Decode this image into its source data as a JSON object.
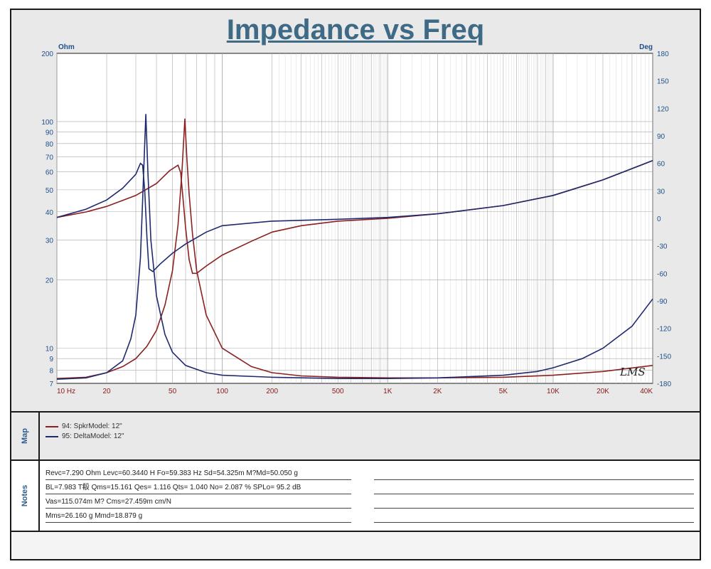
{
  "title": "Impedance vs Freq",
  "chart_data": {
    "type": "line",
    "title": "Impedance vs Freq",
    "x_scale": "log",
    "y_scale": "log",
    "xlim": [
      10,
      40000
    ],
    "ylim_left": [
      7,
      200
    ],
    "ylim_right": [
      -180,
      180
    ],
    "ylabel_left": "Ohm",
    "ylabel_right": "Deg",
    "x_tick_labels": [
      {
        "v": 10,
        "t": "10  Hz"
      },
      {
        "v": 20,
        "t": "20"
      },
      {
        "v": 50,
        "t": "50"
      },
      {
        "v": 100,
        "t": "100"
      },
      {
        "v": 200,
        "t": "200"
      },
      {
        "v": 500,
        "t": "500"
      },
      {
        "v": 1000,
        "t": "1K"
      },
      {
        "v": 2000,
        "t": "2K"
      },
      {
        "v": 5000,
        "t": "5K"
      },
      {
        "v": 10000,
        "t": "10K"
      },
      {
        "v": 20000,
        "t": "20K"
      },
      {
        "v": 40000,
        "t": "40K"
      }
    ],
    "y_left_ticks": [
      7,
      8,
      9,
      10,
      20,
      30,
      40,
      50,
      60,
      70,
      80,
      90,
      100,
      200
    ],
    "y_right_ticks": [
      -180,
      -150,
      -120,
      -90,
      -60,
      -30,
      0,
      30,
      60,
      90,
      120,
      150,
      180
    ],
    "grid": true,
    "legend_position": "bottom panel",
    "series": [
      {
        "name": "94: SpkrModel: 12\"",
        "color": "#8b2020",
        "impedance": [
          [
            10,
            7.35
          ],
          [
            15,
            7.45
          ],
          [
            20,
            7.8
          ],
          [
            25,
            8.3
          ],
          [
            30,
            9.0
          ],
          [
            35,
            10.2
          ],
          [
            40,
            12.0
          ],
          [
            45,
            15.5
          ],
          [
            50,
            22
          ],
          [
            54,
            35
          ],
          [
            57,
            60
          ],
          [
            59.4,
            103
          ],
          [
            61,
            70
          ],
          [
            63,
            48
          ],
          [
            66,
            32
          ],
          [
            70,
            22
          ],
          [
            80,
            14
          ],
          [
            100,
            10.0
          ],
          [
            150,
            8.3
          ],
          [
            200,
            7.8
          ],
          [
            300,
            7.55
          ],
          [
            500,
            7.45
          ],
          [
            1000,
            7.4
          ],
          [
            2000,
            7.4
          ],
          [
            5000,
            7.45
          ],
          [
            10000,
            7.6
          ],
          [
            20000,
            7.9
          ],
          [
            40000,
            8.4
          ]
        ],
        "phase": [
          [
            10,
            1
          ],
          [
            15,
            7
          ],
          [
            20,
            13
          ],
          [
            30,
            25
          ],
          [
            40,
            38
          ],
          [
            48,
            52
          ],
          [
            54,
            58
          ],
          [
            56,
            50
          ],
          [
            58,
            20
          ],
          [
            60,
            -10
          ],
          [
            63,
            -45
          ],
          [
            66,
            -60
          ],
          [
            70,
            -60
          ],
          [
            80,
            -52
          ],
          [
            100,
            -40
          ],
          [
            150,
            -25
          ],
          [
            200,
            -15
          ],
          [
            300,
            -8
          ],
          [
            500,
            -3
          ],
          [
            1000,
            0
          ],
          [
            2000,
            5
          ],
          [
            5000,
            14
          ],
          [
            10000,
            25
          ],
          [
            20000,
            42
          ],
          [
            40000,
            63
          ]
        ]
      },
      {
        "name": "95: DeltaModel: 12\"",
        "color": "#1f2a6e",
        "impedance": [
          [
            10,
            7.3
          ],
          [
            15,
            7.4
          ],
          [
            20,
            7.8
          ],
          [
            25,
            8.8
          ],
          [
            28,
            11
          ],
          [
            30,
            14
          ],
          [
            32,
            25
          ],
          [
            33,
            45
          ],
          [
            34.5,
            108
          ],
          [
            35.5,
            60
          ],
          [
            37,
            30
          ],
          [
            40,
            17
          ],
          [
            45,
            11.5
          ],
          [
            50,
            9.6
          ],
          [
            60,
            8.4
          ],
          [
            80,
            7.8
          ],
          [
            100,
            7.6
          ],
          [
            200,
            7.45
          ],
          [
            500,
            7.35
          ],
          [
            1000,
            7.35
          ],
          [
            2000,
            7.4
          ],
          [
            5000,
            7.6
          ],
          [
            8000,
            7.9
          ],
          [
            10000,
            8.2
          ],
          [
            15000,
            9.0
          ],
          [
            20000,
            10.0
          ],
          [
            30000,
            12.5
          ],
          [
            40000,
            16.5
          ]
        ],
        "phase": [
          [
            10,
            1
          ],
          [
            15,
            10
          ],
          [
            20,
            20
          ],
          [
            25,
            33
          ],
          [
            30,
            48
          ],
          [
            32,
            60
          ],
          [
            33,
            58
          ],
          [
            34,
            30
          ],
          [
            35,
            -20
          ],
          [
            36,
            -55
          ],
          [
            38,
            -58
          ],
          [
            42,
            -50
          ],
          [
            50,
            -38
          ],
          [
            60,
            -28
          ],
          [
            80,
            -15
          ],
          [
            100,
            -8
          ],
          [
            200,
            -3
          ],
          [
            500,
            -1
          ],
          [
            1000,
            1
          ],
          [
            2000,
            5
          ],
          [
            5000,
            14
          ],
          [
            10000,
            25
          ],
          [
            20000,
            42
          ],
          [
            40000,
            63
          ]
        ]
      }
    ]
  },
  "logo_text": "LMS",
  "map_panel": {
    "tab_label": "Map",
    "legend": [
      {
        "label": "94: SpkrModel: 12\"",
        "color": "#8b2020"
      },
      {
        "label": "95: DeltaModel: 12\"",
        "color": "#1f2a6e"
      }
    ]
  },
  "notes_panel": {
    "tab_label": "Notes",
    "lines": [
      "Revc=7.290 Ohm  Levc=60.3440 H  Fo=59.383 Hz  Sd=54.325m M?Md=50.050 g",
      "BL=7.983 T殽  Qms=15.161  Qes= 1.116  Qts= 1.040  No= 2.087 %  SPLo= 95.2 dB",
      "Vas=115.074m M?  Cms=27.459m cm/N",
      "Mms=26.160 g  Mmd=18.879 g"
    ]
  }
}
